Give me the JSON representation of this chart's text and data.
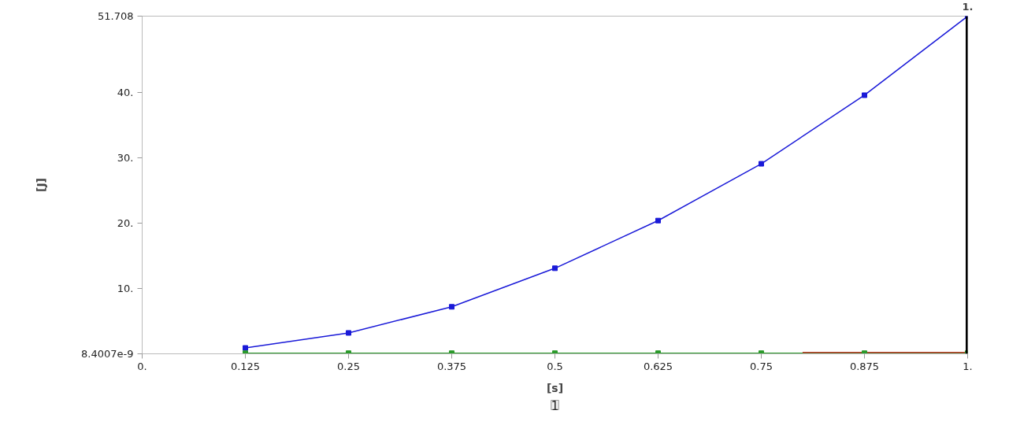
{
  "chart_data": {
    "type": "line",
    "xlabel": "[s]",
    "ylabel": "[J]",
    "xlim": [
      0,
      1
    ],
    "ylim": [
      8.4007e-09,
      51.708
    ],
    "xticks": [
      {
        "value": 0,
        "label": "0."
      },
      0.125,
      0.25,
      0.375,
      0.5,
      0.625,
      0.75,
      0.875,
      {
        "value": 1,
        "label": "1."
      }
    ],
    "yticks": [
      {
        "value": 8.4007e-09,
        "label": "8.4007e-9"
      },
      {
        "value": 10,
        "label": "10."
      },
      {
        "value": 20,
        "label": "20."
      },
      {
        "value": 30,
        "label": "30."
      },
      {
        "value": 40,
        "label": "40."
      },
      {
        "value": 51.708,
        "label": "51.708"
      }
    ],
    "grid": false,
    "marker": "square",
    "line_style": "solid",
    "series": [
      {
        "color": "#1a1ad8",
        "x": [
          0.125,
          0.25,
          0.375,
          0.5,
          0.625,
          0.75,
          0.875,
          1
        ],
        "values": [
          0.9,
          3.2,
          7.2,
          13.1,
          20.4,
          29.1,
          39.6,
          51.7
        ]
      },
      {
        "color": "#2a9a2a",
        "x": [
          0.125,
          0.25,
          0.375,
          0.5,
          0.625,
          0.75,
          0.875,
          1
        ],
        "values": [
          0.1,
          0.1,
          0.1,
          0.1,
          0.1,
          0.1,
          0.1,
          0.1
        ]
      },
      {
        "color": "#c0392b",
        "marker": "none",
        "x": [
          0.8,
          1
        ],
        "values": [
          0.2,
          0.2
        ]
      }
    ],
    "ref_lines": [
      {
        "axis": "x",
        "value": 1,
        "label": "1.",
        "color": "#000000"
      }
    ],
    "annotations": [
      "1"
    ]
  }
}
